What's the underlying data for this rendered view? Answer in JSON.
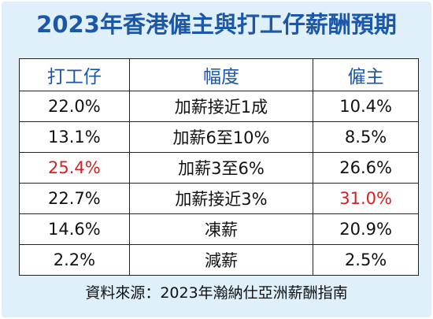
{
  "title": "2023年香港僱主與打工仔薪酬預期",
  "source": "資料來源：2023年瀚納仕亞洲薪酬指南",
  "colors": {
    "title": "#1d58a8",
    "header": "#1a55a5",
    "highlight": "#d62020",
    "background": "#dff0fb"
  },
  "chart_data": {
    "type": "table",
    "columns": [
      "打工仔",
      "幅度",
      "僱主"
    ],
    "rows": [
      {
        "employee": "22.0%",
        "range": "加薪接近1成",
        "employer": "10.4%",
        "highlight": ""
      },
      {
        "employee": "13.1%",
        "range": "加薪6至10%",
        "employer": "8.5%",
        "highlight": ""
      },
      {
        "employee": "25.4%",
        "range": "加薪3至6%",
        "employer": "26.6%",
        "highlight": "employee"
      },
      {
        "employee": "22.7%",
        "range": "加薪接近3%",
        "employer": "31.0%",
        "highlight": "employer"
      },
      {
        "employee": "14.6%",
        "range": "凍薪",
        "employer": "20.9%",
        "highlight": ""
      },
      {
        "employee": "2.2%",
        "range": "減薪",
        "employer": "2.5%",
        "highlight": ""
      }
    ]
  }
}
